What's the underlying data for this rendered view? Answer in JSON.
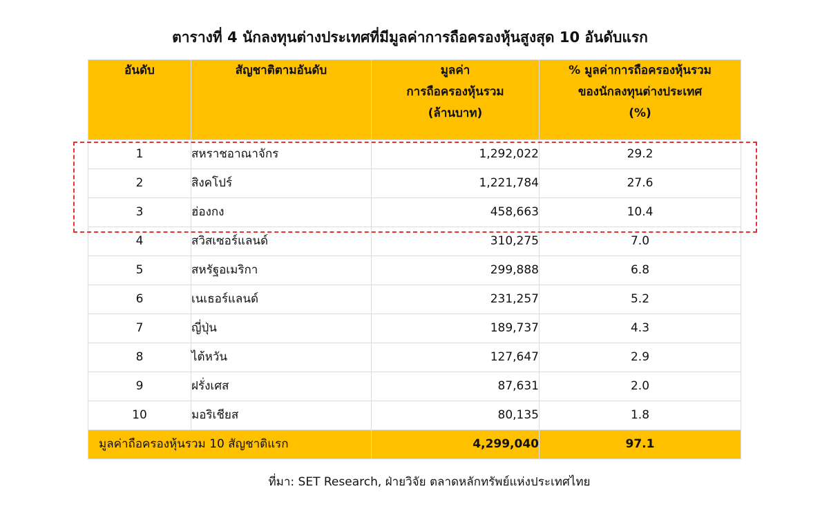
{
  "title": "ตารางที่ 4 นักลงทุนต่างประเทศที่มีมูลค่าการถือครองหุ้นสูงสุด 10 อันดับแรก",
  "table": {
    "headers": {
      "rank": "อันดับ",
      "country": "สัญชาติตามอันดับ",
      "value_line1": "มูลค่า",
      "value_line2": "การถือครองหุ้นรวม",
      "value_line3": "(ล้านบาท)",
      "pct_line1": "% มูลค่าการถือครองหุ้นรวม",
      "pct_line2": "ของนักลงทุนต่างประเทศ",
      "pct_line3": "(%)"
    },
    "rows": [
      {
        "rank": "1",
        "country": "สหราชอาณาจักร",
        "value": "1,292,022",
        "pct": "29.2"
      },
      {
        "rank": "2",
        "country": "สิงคโปร์",
        "value": "1,221,784",
        "pct": "27.6"
      },
      {
        "rank": "3",
        "country": "ฮ่องกง",
        "value": "458,663",
        "pct": "10.4"
      },
      {
        "rank": "4",
        "country": "สวิสเซอร์แลนด์",
        "value": "310,275",
        "pct": "7.0"
      },
      {
        "rank": "5",
        "country": "สหรัฐอเมริกา",
        "value": "299,888",
        "pct": "6.8"
      },
      {
        "rank": "6",
        "country": "เนเธอร์แลนด์",
        "value": "231,257",
        "pct": "5.2"
      },
      {
        "rank": "7",
        "country": "ญี่ปุ่น",
        "value": "189,737",
        "pct": "4.3"
      },
      {
        "rank": "8",
        "country": "ไต้หวัน",
        "value": "127,647",
        "pct": "2.9"
      },
      {
        "rank": "9",
        "country": "ฝรั่งเศส",
        "value": "87,631",
        "pct": "2.0"
      },
      {
        "rank": "10",
        "country": "มอริเชียส",
        "value": "80,135",
        "pct": "1.8"
      }
    ],
    "total": {
      "label": "มูลค่าถือครองหุ้นรวม  10 สัญชาติแรก",
      "value": "4,299,040",
      "pct": "97.1"
    }
  },
  "highlight": {
    "color": "#e8302f",
    "rows": [
      1,
      2,
      3
    ]
  },
  "colors": {
    "header_bg": "#ffc000"
  },
  "source": "ที่มา: SET Research, ฝ่ายวิจัย ตลาดหลักทรัพย์แห่งประเทศไทย"
}
